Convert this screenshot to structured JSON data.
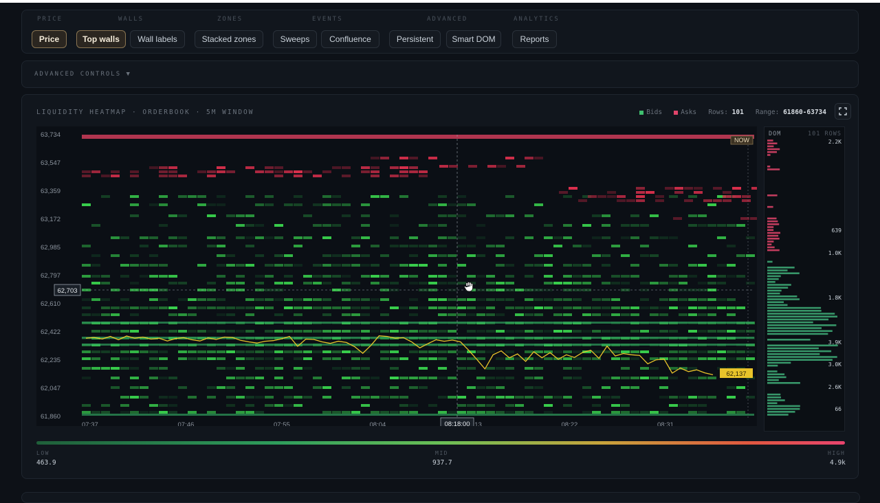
{
  "toolbar": {
    "groups": [
      "PRICE",
      "WALLS",
      "ZONES",
      "EVENTS",
      "ADVANCED",
      "ANALYTICS"
    ],
    "buttons": [
      {
        "label": "Price",
        "active": true
      },
      {
        "label": "Top walls",
        "active": true
      },
      {
        "label": "Wall labels",
        "active": false
      },
      {
        "label": "Stacked zones",
        "active": false
      },
      {
        "label": "Sweeps",
        "active": false
      },
      {
        "label": "Confluence",
        "active": false
      },
      {
        "label": "Persistent",
        "active": false
      },
      {
        "label": "Smart DOM",
        "active": false
      },
      {
        "label": "Reports",
        "active": false
      }
    ]
  },
  "advanced": {
    "label": "ADVANCED CONTROLS ▼"
  },
  "heatmap": {
    "title": "LIQUIDITY HEATMAP · ORDERBOOK · 5M WINDOW",
    "legend_bids": "Bids",
    "legend_asks": "Asks",
    "rows_label": "Rows:",
    "rows_value": "101",
    "range_label": "Range:",
    "range_value": "61860-63734",
    "bid_color": "#3fbf6f",
    "ask_color": "#e0446a",
    "price_color": "#e9c42a",
    "y_ticks": [
      "63,734",
      "63,547",
      "63,359",
      "63,172",
      "62,985",
      "62,797",
      "62,610",
      "62,422",
      "62,235",
      "62,047",
      "61,860"
    ],
    "x_ticks": [
      "07:37",
      "07:46",
      "07:55",
      "08:04",
      "08:13",
      "08:22",
      "08:31"
    ],
    "crosshair_price": "62,703",
    "crosshair_time": "08:18:00",
    "now_label": "NOW",
    "last_price": "62,137",
    "cursor_icon": "hand-grab-icon"
  },
  "chart_data": {
    "type": "heatmap",
    "ylim": [
      61860,
      63734
    ],
    "x": [
      "07:37",
      "07:46",
      "07:55",
      "08:04",
      "08:13",
      "08:22",
      "08:31"
    ],
    "price_series": [
      62380,
      62385,
      62375,
      62392,
      62370,
      62395,
      62380,
      62388,
      62374,
      62380,
      62362,
      62378,
      62384,
      62370,
      62362,
      62382,
      62372,
      62388,
      62385,
      62366,
      62356,
      62348,
      62360,
      62364,
      62376,
      62392,
      62326,
      62374,
      62372,
      62356,
      62346,
      62360,
      62352,
      62324,
      62280,
      62332,
      62396,
      62392,
      62380,
      62384,
      62356,
      62316,
      62344,
      62370,
      62360,
      62368,
      62356,
      62300,
      62240,
      62176,
      62270,
      62296,
      62250,
      62276,
      62226,
      62290,
      62250,
      62284,
      62240,
      62270,
      62252,
      62286,
      62300,
      62246,
      62328,
      62262,
      62278,
      62270,
      62266,
      62210,
      62236,
      62242,
      62148,
      62182,
      62158,
      62170,
      62150,
      62137
    ],
    "last_price": 62137
  },
  "dom": {
    "title": "DOM",
    "rows_label": "101 ROWS",
    "value_labels": [
      "2.2K",
      "639",
      "1.0K",
      "1.8K",
      "3.9K",
      "3.0K",
      "2.6K",
      "66"
    ]
  },
  "gradient": {
    "low_label": "LOW",
    "low_value": "463.9",
    "mid_label": "MID",
    "mid_value": "937.7",
    "high_label": "HIGH",
    "high_value": "4.9k"
  }
}
